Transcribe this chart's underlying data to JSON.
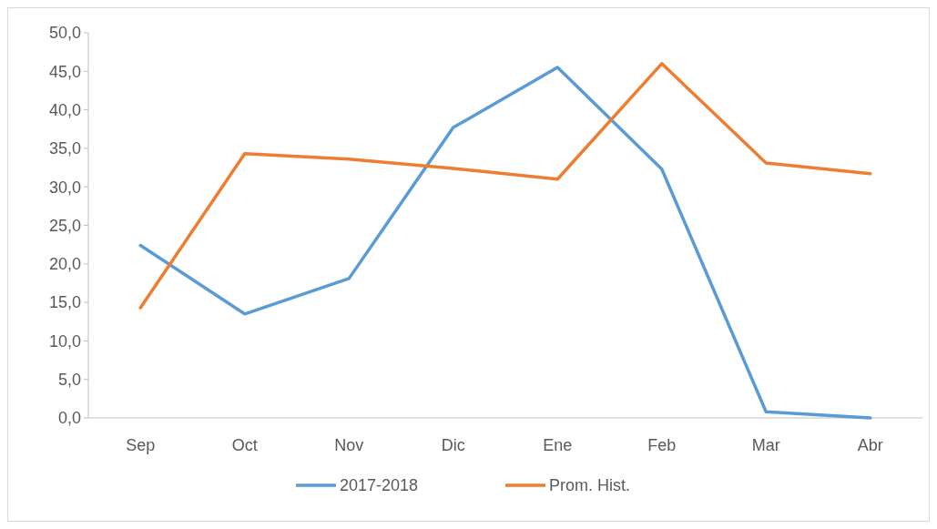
{
  "chart_data": {
    "type": "line",
    "categories": [
      "Sep",
      "Oct",
      "Nov",
      "Dic",
      "Ene",
      "Feb",
      "Mar",
      "Abr"
    ],
    "series": [
      {
        "name": "2017-2018",
        "color": "#5b9bd5",
        "values": [
          22.4,
          13.5,
          18.1,
          37.7,
          45.5,
          32.3,
          0.8,
          0
        ]
      },
      {
        "name": "Prom. Hist.",
        "color": "#ed7d31",
        "values": [
          14.3,
          34.3,
          33.6,
          32.4,
          31.0,
          46.0,
          33.1,
          31.7
        ]
      }
    ],
    "ylim": [
      0,
      50
    ],
    "yticks": [
      {
        "value": 0,
        "label": "0,0"
      },
      {
        "value": 5,
        "label": "5,0"
      },
      {
        "value": 10,
        "label": "10,0"
      },
      {
        "value": 15,
        "label": "15,0"
      },
      {
        "value": 20,
        "label": "20,0"
      },
      {
        "value": 25,
        "label": "25,0"
      },
      {
        "value": 30,
        "label": "30,0"
      },
      {
        "value": 35,
        "label": "35,0"
      },
      {
        "value": 40,
        "label": "40,0"
      },
      {
        "value": 45,
        "label": "45,0"
      },
      {
        "value": 50,
        "label": "50,0"
      }
    ],
    "grid": false,
    "legend": "bottom",
    "marker": "none",
    "line_style": "solid"
  }
}
